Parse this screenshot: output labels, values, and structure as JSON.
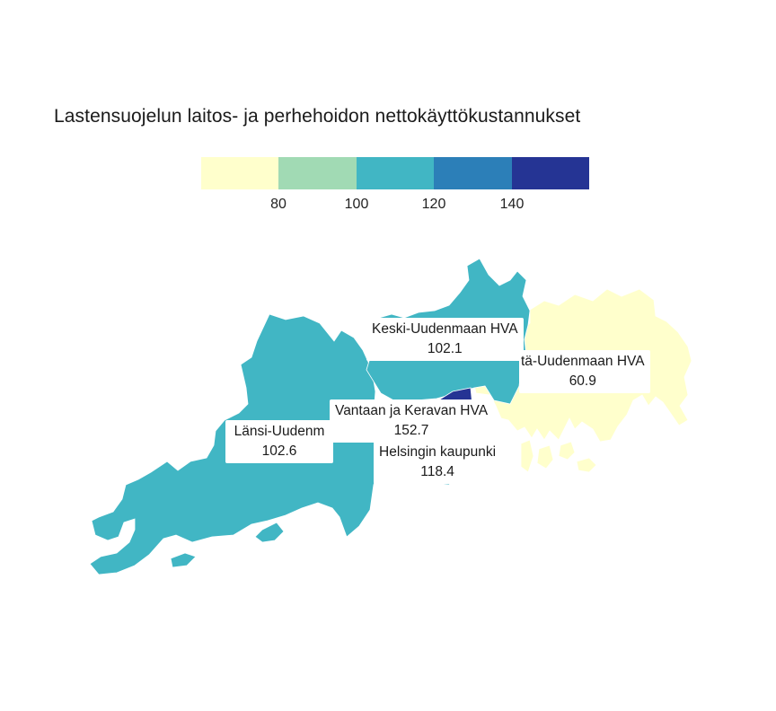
{
  "title": "Lastensuojelun laitos- ja perhehoidon nettokäyttökustannukset",
  "legend": {
    "colors": [
      "#ffffcc",
      "#a1dab4",
      "#41b6c4",
      "#2c7fb8",
      "#253494"
    ],
    "ticks": [
      "80",
      "100",
      "120",
      "140"
    ]
  },
  "regions": [
    {
      "name": "Länsi-Uudenmaan HVA",
      "value": "102.6",
      "color": "#41b6c4"
    },
    {
      "name": "Keski-Uudenmaan HVA",
      "value": "102.1",
      "color": "#41b6c4"
    },
    {
      "name": "Itä-Uudenmaan HVA",
      "value": "60.9",
      "color": "#ffffcc"
    },
    {
      "name": "Vantaan ja Keravan HVA",
      "value": "152.7",
      "color": "#253494"
    },
    {
      "name": "Helsingin kaupunki",
      "value": "118.4",
      "color": "#41b6c4"
    }
  ],
  "labels": {
    "lansi": {
      "name": "Länsi-Uudenm",
      "value": "102.6"
    },
    "keski": {
      "name": "Keski-Uudenmaan HVA",
      "value": "102.1"
    },
    "ita": {
      "name": "tä-Uudenmaan HVA",
      "value": "60.9"
    },
    "vantaa": {
      "name": "Vantaan ja Keravan HVA",
      "value": "152.7"
    },
    "helsinki": {
      "name": "Helsingin kaupunki",
      "value": "118.4"
    }
  }
}
